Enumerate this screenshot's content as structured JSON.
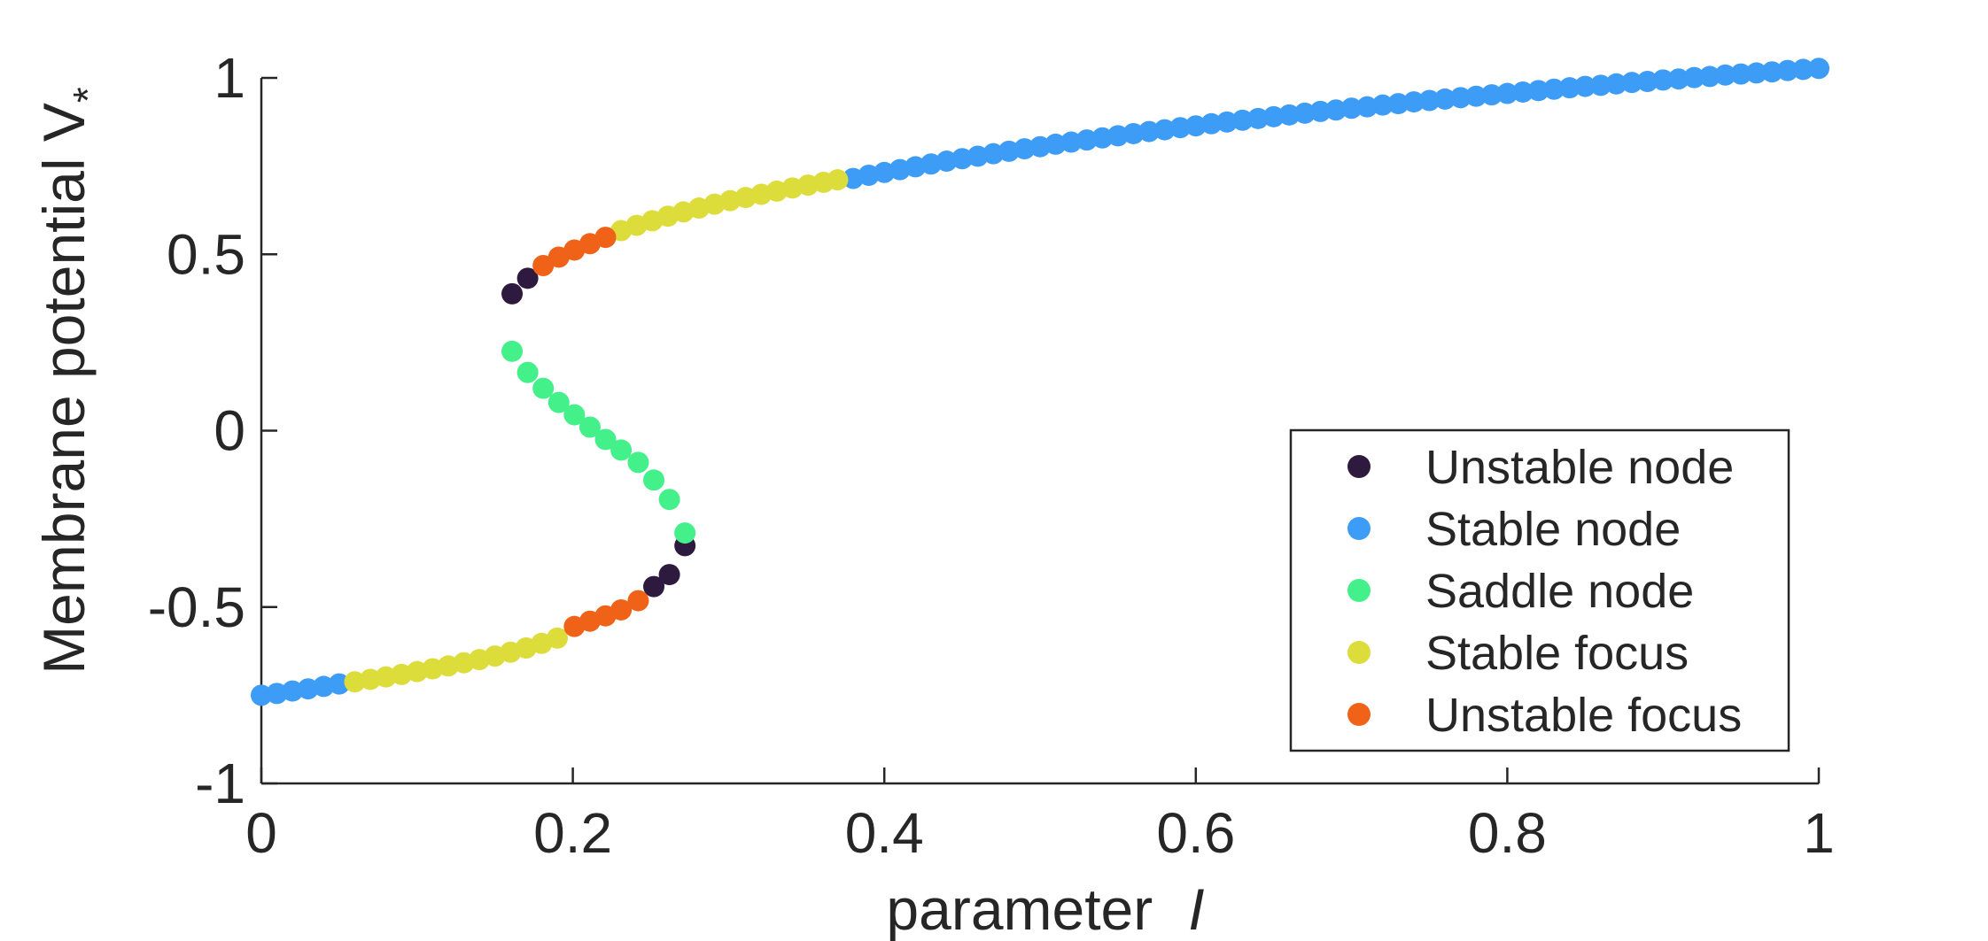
{
  "chart_data": {
    "type": "scatter",
    "title": "",
    "xlabel": "parameter",
    "xlabel_symbol": "I",
    "ylabel": "Membrane potential V",
    "ylabel_subscript": "*",
    "xlim": [
      0,
      1
    ],
    "ylim": [
      -1,
      1
    ],
    "xticks": [
      0,
      0.2,
      0.4,
      0.6,
      0.8,
      1
    ],
    "xtick_labels": [
      "0",
      "0.2",
      "0.4",
      "0.6",
      "0.8",
      "1"
    ],
    "yticks": [
      -1,
      -0.5,
      0,
      0.5,
      1
    ],
    "ytick_labels": [
      "-1",
      "-0.5",
      "0",
      "0.5",
      "1"
    ],
    "grid": false,
    "legend_position": "lower-right",
    "series": [
      {
        "name": "Unstable node",
        "color": "#2e1a3f",
        "points": [
          [
            0.161,
            0.388
          ],
          [
            0.171,
            0.432
          ],
          [
            0.252,
            -0.442
          ],
          [
            0.262,
            -0.408
          ],
          [
            0.272,
            -0.326
          ]
        ]
      },
      {
        "name": "Stable node",
        "color": "#3d9cf5",
        "points": [
          [
            0.0,
            -0.75
          ],
          [
            0.01,
            -0.745
          ],
          [
            0.02,
            -0.738
          ],
          [
            0.03,
            -0.732
          ],
          [
            0.04,
            -0.725
          ],
          [
            0.05,
            -0.718
          ],
          [
            0.38,
            0.715
          ],
          [
            0.39,
            0.724
          ],
          [
            0.4,
            0.732
          ],
          [
            0.41,
            0.74
          ],
          [
            0.42,
            0.748
          ],
          [
            0.43,
            0.756
          ],
          [
            0.44,
            0.764
          ],
          [
            0.45,
            0.771
          ],
          [
            0.46,
            0.778
          ],
          [
            0.47,
            0.785
          ],
          [
            0.48,
            0.792
          ],
          [
            0.49,
            0.799
          ],
          [
            0.5,
            0.805
          ],
          [
            0.51,
            0.812
          ],
          [
            0.52,
            0.818
          ],
          [
            0.53,
            0.824
          ],
          [
            0.54,
            0.83
          ],
          [
            0.55,
            0.836
          ],
          [
            0.56,
            0.842
          ],
          [
            0.57,
            0.848
          ],
          [
            0.58,
            0.853
          ],
          [
            0.59,
            0.859
          ],
          [
            0.6,
            0.864
          ],
          [
            0.61,
            0.87
          ],
          [
            0.62,
            0.875
          ],
          [
            0.63,
            0.88
          ],
          [
            0.64,
            0.885
          ],
          [
            0.65,
            0.89
          ],
          [
            0.66,
            0.895
          ],
          [
            0.67,
            0.9
          ],
          [
            0.68,
            0.905
          ],
          [
            0.69,
            0.909
          ],
          [
            0.7,
            0.914
          ],
          [
            0.71,
            0.918
          ],
          [
            0.72,
            0.923
          ],
          [
            0.73,
            0.927
          ],
          [
            0.74,
            0.932
          ],
          [
            0.75,
            0.936
          ],
          [
            0.76,
            0.94
          ],
          [
            0.77,
            0.944
          ],
          [
            0.78,
            0.948
          ],
          [
            0.79,
            0.952
          ],
          [
            0.8,
            0.956
          ],
          [
            0.81,
            0.96
          ],
          [
            0.82,
            0.964
          ],
          [
            0.83,
            0.968
          ],
          [
            0.84,
            0.972
          ],
          [
            0.85,
            0.976
          ],
          [
            0.86,
            0.979
          ],
          [
            0.87,
            0.983
          ],
          [
            0.88,
            0.987
          ],
          [
            0.89,
            0.99
          ],
          [
            0.9,
            0.994
          ],
          [
            0.91,
            0.997
          ],
          [
            0.92,
            1.001
          ],
          [
            0.93,
            1.004
          ],
          [
            0.94,
            1.008
          ],
          [
            0.95,
            1.011
          ],
          [
            0.96,
            1.014
          ],
          [
            0.97,
            1.017
          ],
          [
            0.98,
            1.021
          ],
          [
            0.99,
            1.024
          ],
          [
            1.0,
            1.027
          ]
        ]
      },
      {
        "name": "Saddle node",
        "color": "#44f08a",
        "points": [
          [
            0.161,
            0.225
          ],
          [
            0.171,
            0.165
          ],
          [
            0.181,
            0.12
          ],
          [
            0.191,
            0.08
          ],
          [
            0.201,
            0.045
          ],
          [
            0.211,
            0.01
          ],
          [
            0.221,
            -0.025
          ],
          [
            0.231,
            -0.055
          ],
          [
            0.242,
            -0.09
          ],
          [
            0.252,
            -0.14
          ],
          [
            0.262,
            -0.195
          ],
          [
            0.272,
            -0.29
          ]
        ]
      },
      {
        "name": "Stable focus",
        "color": "#dcdc3a",
        "points": [
          [
            0.06,
            -0.712
          ],
          [
            0.07,
            -0.705
          ],
          [
            0.08,
            -0.698
          ],
          [
            0.09,
            -0.691
          ],
          [
            0.1,
            -0.683
          ],
          [
            0.11,
            -0.675
          ],
          [
            0.12,
            -0.667
          ],
          [
            0.13,
            -0.658
          ],
          [
            0.14,
            -0.649
          ],
          [
            0.15,
            -0.639
          ],
          [
            0.16,
            -0.628
          ],
          [
            0.17,
            -0.616
          ],
          [
            0.18,
            -0.603
          ],
          [
            0.19,
            -0.588
          ],
          [
            0.231,
            0.567
          ],
          [
            0.241,
            0.582
          ],
          [
            0.251,
            0.595
          ],
          [
            0.261,
            0.608
          ],
          [
            0.271,
            0.62
          ],
          [
            0.281,
            0.631
          ],
          [
            0.291,
            0.642
          ],
          [
            0.301,
            0.652
          ],
          [
            0.311,
            0.661
          ],
          [
            0.321,
            0.67
          ],
          [
            0.331,
            0.679
          ],
          [
            0.341,
            0.688
          ],
          [
            0.351,
            0.696
          ],
          [
            0.361,
            0.704
          ],
          [
            0.37,
            0.711
          ]
        ]
      },
      {
        "name": "Unstable focus",
        "color": "#f06218",
        "points": [
          [
            0.181,
            0.468
          ],
          [
            0.191,
            0.492
          ],
          [
            0.201,
            0.512
          ],
          [
            0.211,
            0.53
          ],
          [
            0.221,
            0.548
          ],
          [
            0.201,
            -0.555
          ],
          [
            0.211,
            -0.54
          ],
          [
            0.221,
            -0.525
          ],
          [
            0.231,
            -0.508
          ],
          [
            0.242,
            -0.482
          ]
        ]
      }
    ]
  }
}
